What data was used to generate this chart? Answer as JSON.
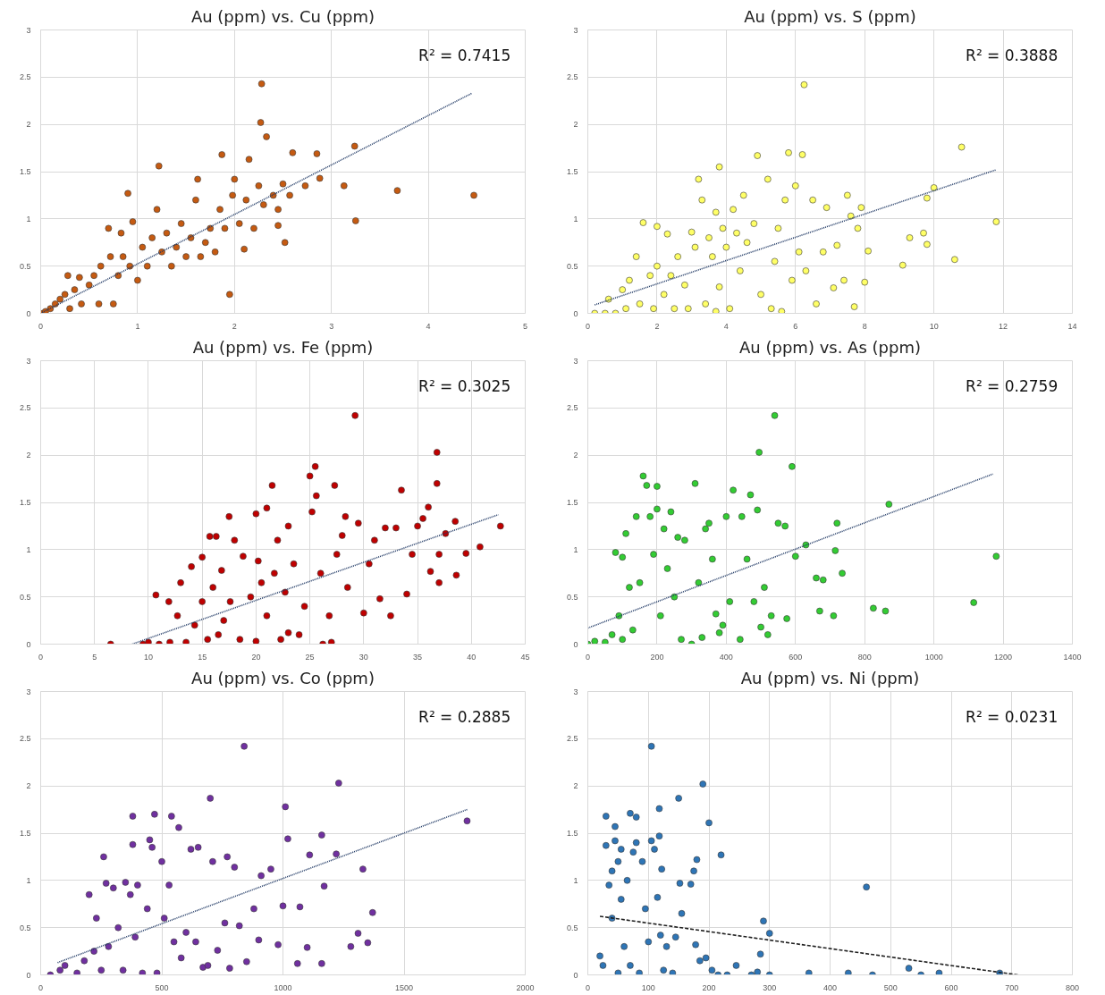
{
  "chart_data": [
    {
      "type": "scatter",
      "title": "Au (ppm) vs. Cu (ppm)",
      "grid": true,
      "xlim": [
        0,
        5
      ],
      "xticks": [
        0,
        1,
        2,
        3,
        4,
        5
      ],
      "ylim": [
        0,
        3
      ],
      "yticks": [
        0,
        0.5,
        1,
        1.5,
        2,
        2.5,
        3
      ],
      "annotations": [
        "R² = 0.7415"
      ],
      "series": [
        {
          "marker": "circle",
          "color": "#c55a11",
          "x": [
            0.02,
            0.05,
            0.1,
            0.15,
            0.2,
            0.25,
            0.28,
            0.3,
            0.35,
            0.4,
            0.42,
            0.5,
            0.55,
            0.6,
            0.62,
            0.7,
            0.72,
            0.75,
            0.8,
            0.83,
            0.85,
            0.9,
            0.92,
            0.95,
            1.0,
            1.05,
            1.1,
            1.15,
            1.2,
            1.22,
            1.25,
            1.3,
            1.35,
            1.4,
            1.45,
            1.5,
            1.55,
            1.6,
            1.62,
            1.65,
            1.7,
            1.75,
            1.8,
            1.85,
            1.87,
            1.9,
            1.95,
            1.98,
            2.0,
            2.05,
            2.1,
            2.12,
            2.15,
            2.2,
            2.25,
            2.27,
            2.28,
            2.3,
            2.33,
            2.4,
            2.45,
            2.45,
            2.5,
            2.52,
            2.57,
            2.6,
            2.73,
            2.85,
            2.88,
            3.13,
            3.24,
            3.25,
            3.68,
            4.47
          ],
          "values": [
            0,
            0.02,
            0.05,
            0.1,
            0.15,
            0.2,
            0.4,
            0.05,
            0.25,
            0.38,
            0.1,
            0.3,
            0.4,
            0.1,
            0.5,
            0.9,
            0.6,
            0.1,
            0.4,
            0.85,
            0.6,
            1.27,
            0.5,
            0.97,
            0.35,
            0.7,
            0.5,
            0.8,
            1.1,
            1.56,
            0.65,
            0.85,
            0.5,
            0.7,
            0.95,
            0.6,
            0.8,
            1.2,
            1.42,
            0.6,
            0.75,
            0.9,
            0.65,
            1.1,
            1.68,
            0.9,
            0.2,
            1.25,
            1.42,
            0.95,
            0.68,
            1.2,
            1.63,
            0.9,
            1.35,
            2.02,
            2.43,
            1.15,
            1.87,
            1.25,
            1.1,
            0.93,
            1.37,
            0.75,
            1.25,
            1.7,
            1.35,
            1.69,
            1.43,
            1.35,
            1.77,
            0.98,
            1.3,
            1.25
          ]
        },
        {
          "type": "line",
          "line_style": "dotted",
          "color": "#1f3864",
          "x": [
            0,
            4.45
          ],
          "values": [
            0,
            2.33
          ]
        }
      ]
    },
    {
      "type": "scatter",
      "title": "Au (ppm) vs. S (ppm)",
      "grid": true,
      "xlim": [
        0,
        14
      ],
      "xticks": [
        0,
        2,
        4,
        6,
        8,
        10,
        12,
        14
      ],
      "ylim": [
        0,
        3
      ],
      "yticks": [
        0,
        0.5,
        1,
        1.5,
        2,
        2.5,
        3
      ],
      "annotations": [
        "R² = 0.3888"
      ],
      "series": [
        {
          "marker": "circle",
          "color": "#ffff66",
          "x": [
            0.2,
            0.5,
            0.6,
            0.8,
            1,
            1.1,
            1.2,
            1.4,
            1.5,
            1.6,
            1.8,
            1.9,
            2,
            2,
            2.2,
            2.3,
            2.4,
            2.5,
            2.6,
            2.8,
            2.9,
            3,
            3.1,
            3.2,
            3.3,
            3.4,
            3.5,
            3.6,
            3.7,
            3.7,
            3.8,
            3.8,
            3.9,
            4,
            4.1,
            4.2,
            4.3,
            4.4,
            4.5,
            4.6,
            4.8,
            4.9,
            5,
            5.2,
            5.3,
            5.4,
            5.5,
            5.6,
            5.7,
            5.8,
            5.9,
            6,
            6.1,
            6.2,
            6.25,
            6.3,
            6.5,
            6.6,
            6.8,
            6.9,
            7.1,
            7.2,
            7.4,
            7.5,
            7.6,
            7.7,
            7.8,
            7.9,
            8,
            8.1,
            9.1,
            9.3,
            9.7,
            9.8,
            9.8,
            10,
            10.6,
            10.8,
            11.8
          ],
          "values": [
            0,
            0,
            0.15,
            0,
            0.25,
            0.05,
            0.35,
            0.6,
            0.1,
            0.96,
            0.4,
            0.05,
            0.92,
            0.5,
            0.2,
            0.84,
            0.4,
            0.05,
            0.6,
            0.3,
            0.05,
            0.86,
            0.7,
            1.42,
            1.2,
            0.1,
            0.8,
            0.6,
            0.02,
            1.07,
            0.28,
            1.55,
            0.9,
            0.7,
            0.05,
            1.1,
            0.85,
            0.45,
            1.25,
            0.75,
            0.95,
            1.67,
            0.2,
            1.42,
            0.05,
            0.55,
            0.9,
            0.02,
            1.2,
            1.7,
            0.35,
            1.35,
            0.65,
            1.68,
            2.42,
            0.45,
            1.2,
            0.1,
            0.65,
            1.12,
            0.27,
            0.72,
            0.35,
            1.25,
            1.03,
            0.07,
            0.9,
            1.12,
            0.33,
            0.66,
            0.51,
            0.8,
            0.85,
            1.22,
            0.73,
            1.33,
            0.57,
            1.76,
            0.97
          ]
        },
        {
          "type": "line",
          "line_style": "dotted",
          "color": "#1f3864",
          "x": [
            0.2,
            11.8
          ],
          "values": [
            0.09,
            1.52
          ]
        }
      ]
    },
    {
      "type": "scatter",
      "title": "Au (ppm) vs. Fe (ppm)",
      "grid": true,
      "xlim": [
        0,
        45
      ],
      "xticks": [
        0,
        5,
        10,
        15,
        20,
        25,
        30,
        35,
        40,
        45
      ],
      "ylim": [
        0,
        3
      ],
      "yticks": [
        0,
        0.5,
        1,
        1.5,
        2,
        2.5,
        3
      ],
      "annotations": [
        "R² = 0.3025"
      ],
      "series": [
        {
          "marker": "circle",
          "color": "#c00000",
          "x": [
            6.5,
            9.5,
            10,
            10.7,
            11,
            11.9,
            12,
            12.7,
            13,
            13.5,
            14,
            14.3,
            15,
            15,
            15.5,
            15.7,
            16,
            16.3,
            16.5,
            16.8,
            17,
            17.5,
            17.6,
            18,
            18.5,
            18.8,
            19.5,
            20,
            20,
            20.2,
            20.5,
            21,
            21,
            21.5,
            21.7,
            22,
            22.3,
            22.7,
            23,
            23,
            23.5,
            24,
            24.5,
            25,
            25.2,
            25.5,
            25.6,
            26,
            26.2,
            26.8,
            27,
            27.3,
            27.5,
            28,
            28.3,
            28.5,
            29.2,
            29.5,
            30,
            30.5,
            31,
            31.5,
            32,
            32.5,
            33,
            33.5,
            34,
            34.5,
            35,
            35.5,
            36,
            36.2,
            36.8,
            36.8,
            37,
            37,
            37.6,
            38.5,
            38.6,
            39.5,
            40.8,
            42.7
          ],
          "values": [
            0,
            0,
            0.02,
            0.52,
            0,
            0.45,
            0.02,
            0.3,
            0.65,
            0.02,
            0.82,
            0.2,
            0.92,
            0.45,
            0.05,
            1.14,
            0.6,
            1.14,
            0.1,
            0.78,
            0.25,
            1.35,
            0.45,
            1.1,
            0.05,
            0.93,
            0.5,
            1.38,
            0.03,
            0.88,
            0.65,
            1.44,
            0.3,
            1.68,
            0.75,
            1.1,
            0.05,
            0.55,
            1.25,
            0.12,
            0.85,
            0.1,
            0.4,
            1.78,
            1.4,
            1.88,
            1.57,
            0.75,
            0,
            0.3,
            0.02,
            1.68,
            0.95,
            1.15,
            1.35,
            0.6,
            2.42,
            1.28,
            0.33,
            0.85,
            1.1,
            0.48,
            1.23,
            0.3,
            1.23,
            1.63,
            0.53,
            0.95,
            1.25,
            1.33,
            1.45,
            0.77,
            2.03,
            1.7,
            0.65,
            0.95,
            1.17,
            1.3,
            0.73,
            0.96,
            1.03,
            1.25
          ]
        },
        {
          "type": "line",
          "line_style": "dotted",
          "color": "#1f3864",
          "x": [
            8.5,
            42.5
          ],
          "values": [
            0,
            1.37
          ]
        }
      ]
    },
    {
      "type": "scatter",
      "title": "Au (ppm) vs. As (ppm)",
      "grid": true,
      "xlim": [
        0,
        1400
      ],
      "xticks": [
        0,
        200,
        400,
        600,
        800,
        1000,
        1200,
        1400
      ],
      "ylim": [
        0,
        3
      ],
      "yticks": [
        0,
        0.5,
        1,
        1.5,
        2,
        2.5,
        3
      ],
      "annotations": [
        "R² = 0.2759"
      ],
      "series": [
        {
          "marker": "circle",
          "color": "#33cc33",
          "x": [
            0,
            20,
            50,
            70,
            80,
            90,
            100,
            100,
            110,
            120,
            130,
            140,
            150,
            160,
            170,
            180,
            190,
            200,
            200,
            210,
            220,
            230,
            240,
            250,
            260,
            270,
            280,
            300,
            310,
            320,
            330,
            340,
            350,
            360,
            370,
            380,
            390,
            400,
            410,
            420,
            440,
            445,
            460,
            470,
            480,
            490,
            495,
            500,
            510,
            520,
            530,
            540,
            550,
            570,
            575,
            590,
            600,
            630,
            660,
            670,
            680,
            710,
            715,
            720,
            735,
            825,
            860,
            870,
            1115,
            1180
          ],
          "values": [
            0,
            0.03,
            0.02,
            0.1,
            0.97,
            0.3,
            0.92,
            0.05,
            1.17,
            0.6,
            0.15,
            1.35,
            0.65,
            1.78,
            1.68,
            1.35,
            0.95,
            1.43,
            1.67,
            0.3,
            1.22,
            0.8,
            1.4,
            0.5,
            1.13,
            0.05,
            1.1,
            0,
            1.7,
            0.65,
            0.07,
            1.22,
            1.28,
            0.9,
            0.32,
            0.12,
            0.2,
            1.35,
            0.45,
            1.63,
            0.05,
            1.35,
            0.9,
            1.58,
            0.45,
            1.42,
            2.03,
            0.18,
            0.6,
            0.1,
            0.3,
            2.42,
            1.28,
            1.25,
            0.27,
            1.88,
            0.93,
            1.05,
            0.7,
            0.35,
            0.68,
            0.3,
            0.99,
            1.28,
            0.75,
            0.38,
            0.35,
            1.48,
            0.44,
            0.93
          ]
        },
        {
          "type": "line",
          "line_style": "dotted",
          "color": "#1f3864",
          "x": [
            0,
            1170
          ],
          "values": [
            0.17,
            1.8
          ]
        }
      ]
    },
    {
      "type": "scatter",
      "title": "Au (ppm) vs. Co (ppm)",
      "grid": true,
      "xlim": [
        0,
        2000
      ],
      "xticks": [
        0,
        500,
        1000,
        1500,
        2000
      ],
      "ylim": [
        0,
        3
      ],
      "yticks": [
        0,
        0.5,
        1,
        1.5,
        2,
        2.5,
        3
      ],
      "annotations": [
        "R² = 0.2885"
      ],
      "series": [
        {
          "marker": "circle",
          "color": "#7030a0",
          "x": [
            40,
            80,
            100,
            150,
            180,
            200,
            220,
            230,
            250,
            260,
            270,
            280,
            300,
            320,
            340,
            350,
            370,
            380,
            380,
            390,
            400,
            420,
            440,
            450,
            460,
            470,
            480,
            500,
            510,
            530,
            540,
            550,
            570,
            580,
            600,
            620,
            640,
            650,
            670,
            690,
            700,
            710,
            730,
            760,
            770,
            780,
            800,
            820,
            840,
            850,
            880,
            900,
            910,
            950,
            980,
            1000,
            1010,
            1020,
            1060,
            1070,
            1100,
            1110,
            1160,
            1160,
            1170,
            1230,
            1220,
            1280,
            1310,
            1330,
            1350,
            1370,
            1760
          ],
          "values": [
            0,
            0.05,
            0.1,
            0.02,
            0.15,
            0.85,
            0.25,
            0.6,
            0.05,
            1.25,
            0.97,
            0.3,
            0.92,
            0.5,
            0.05,
            0.98,
            0.85,
            1.68,
            1.38,
            0.4,
            0.95,
            0.02,
            0.7,
            1.43,
            1.35,
            1.7,
            0.02,
            1.2,
            0.6,
            0.95,
            1.68,
            0.35,
            1.56,
            0.18,
            0.45,
            1.33,
            0.35,
            1.35,
            0.08,
            0.1,
            1.87,
            1.2,
            0.26,
            0.55,
            1.25,
            0.07,
            1.14,
            0.52,
            2.42,
            0.14,
            0.7,
            0.37,
            1.05,
            1.12,
            0.32,
            0.73,
            1.78,
            1.44,
            0.12,
            0.72,
            0.29,
            1.27,
            1.48,
            0.12,
            0.94,
            2.03,
            1.28,
            0.3,
            0.44,
            1.12,
            0.34,
            0.66,
            1.63
          ]
        },
        {
          "type": "line",
          "line_style": "dotted",
          "color": "#1f3864",
          "x": [
            70,
            1760
          ],
          "values": [
            0.13,
            1.75
          ]
        }
      ]
    },
    {
      "type": "scatter",
      "title": "Au (ppm) vs. Ni (ppm)",
      "grid": true,
      "xlim": [
        0,
        800
      ],
      "xticks": [
        0,
        100,
        200,
        300,
        400,
        500,
        600,
        700,
        800
      ],
      "ylim": [
        0,
        3
      ],
      "yticks": [
        0,
        0.5,
        1,
        1.5,
        2,
        2.5,
        3
      ],
      "annotations": [
        "R² = 0.0231"
      ],
      "series": [
        {
          "marker": "circle",
          "color": "#2e75b6",
          "x": [
            20,
            25,
            30,
            30,
            35,
            40,
            40,
            45,
            45,
            50,
            50,
            55,
            55,
            60,
            65,
            70,
            70,
            75,
            80,
            80,
            85,
            90,
            95,
            100,
            105,
            105,
            110,
            115,
            118,
            118,
            120,
            122,
            125,
            130,
            140,
            145,
            150,
            152,
            155,
            170,
            175,
            178,
            180,
            185,
            190,
            195,
            200,
            205,
            215,
            220,
            230,
            245,
            270,
            280,
            285,
            290,
            300,
            300,
            365,
            430,
            460,
            470,
            530,
            550,
            580,
            680
          ],
          "values": [
            0.2,
            0.1,
            1.68,
            1.37,
            0.95,
            0.6,
            1.1,
            1.57,
            1.42,
            1.2,
            0.02,
            1.33,
            0.8,
            0.3,
            1.0,
            1.71,
            0.1,
            1.3,
            1.4,
            1.67,
            0.02,
            1.2,
            0.7,
            0.35,
            2.42,
            1.42,
            1.33,
            0.82,
            1.76,
            1.47,
            0.42,
            1.12,
            0.05,
            0.3,
            0.02,
            0.4,
            1.87,
            0.97,
            0.65,
            0.96,
            1.1,
            0.32,
            1.22,
            0.15,
            2.02,
            0.18,
            1.61,
            0.05,
            0,
            1.27,
            0,
            0.1,
            0,
            0.03,
            0.22,
            0.57,
            0.44,
            0,
            0.02,
            0.02,
            0.93,
            0,
            0.07,
            0,
            0.02,
            0.02
          ]
        },
        {
          "type": "line",
          "line_style": "dashed",
          "color": "#1f1f1f",
          "x": [
            20,
            710
          ],
          "values": [
            0.62,
            0
          ]
        }
      ]
    }
  ]
}
